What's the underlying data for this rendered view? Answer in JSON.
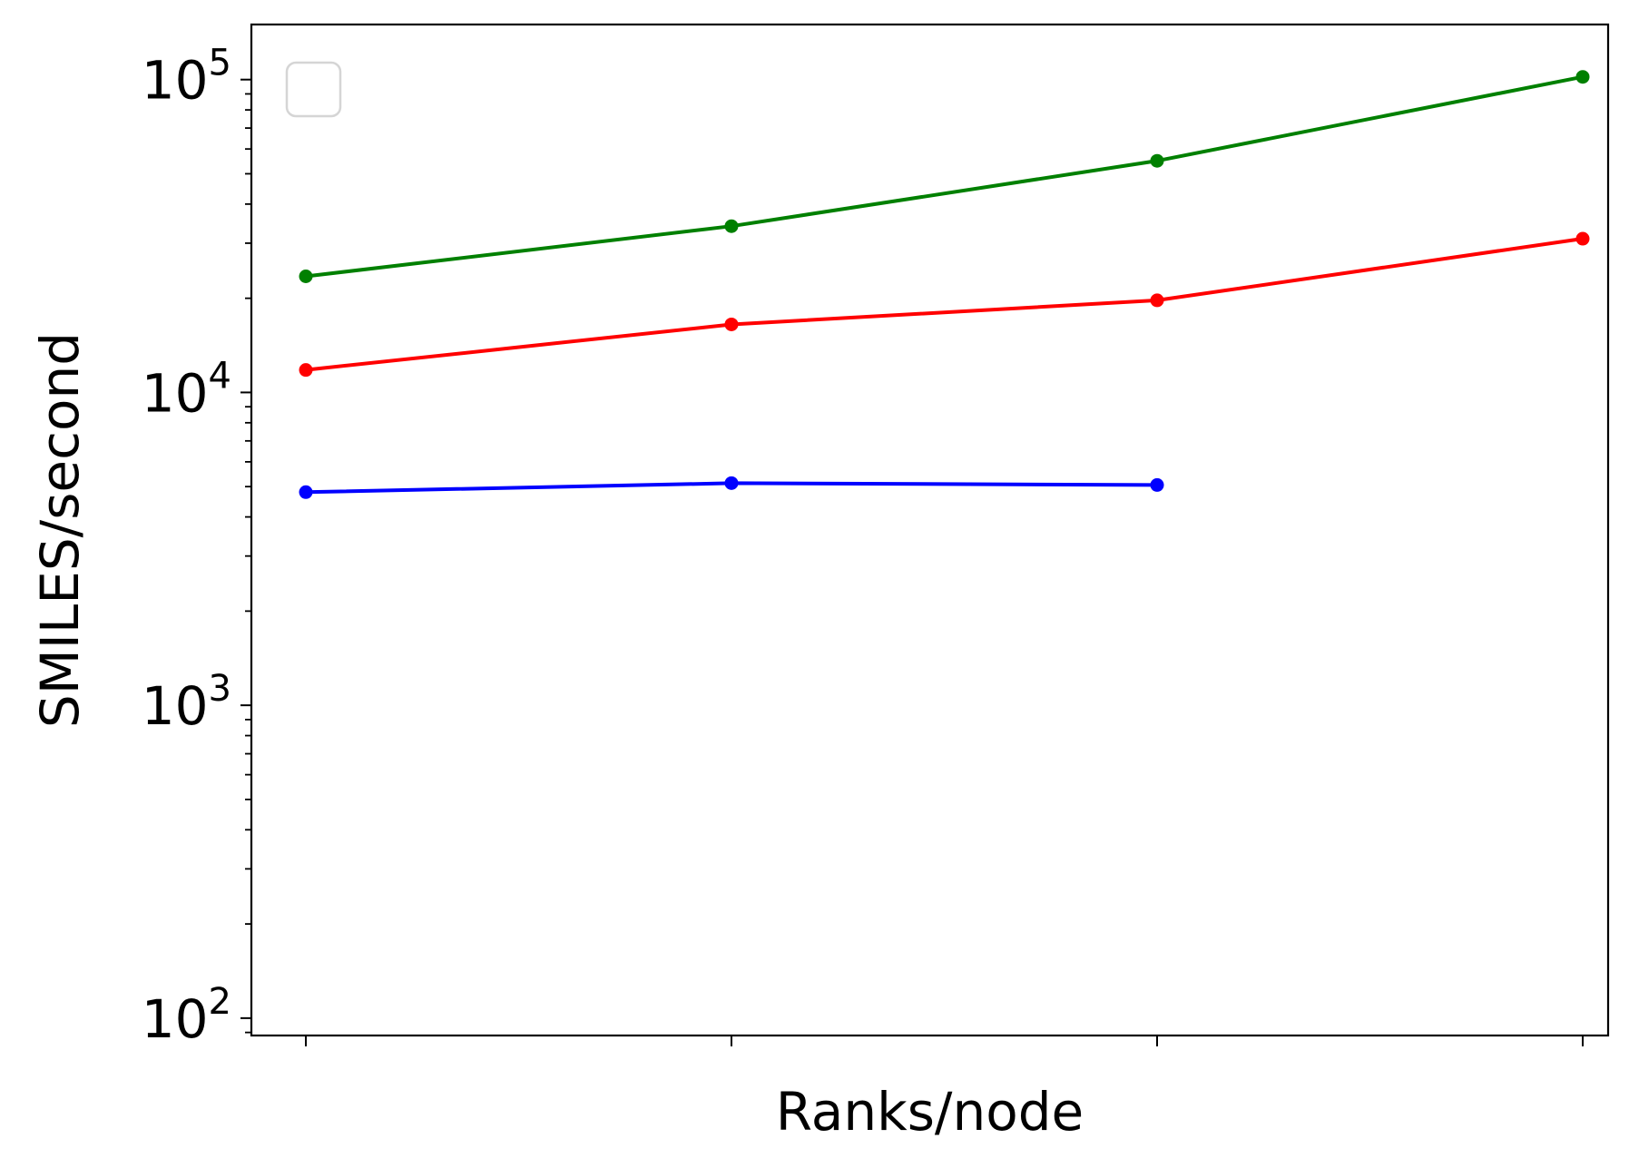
{
  "chart_data": {
    "type": "line",
    "title": "",
    "xlabel": "Ranks/node",
    "ylabel": "SMILES/second",
    "y_scale": "log",
    "ylim": [
      88,
      150000
    ],
    "x_tick_count": 4,
    "x_tick_labels": [
      "",
      "",
      "",
      ""
    ],
    "y_major_ticks": [
      {
        "value": 100,
        "base": "10",
        "exp": "2"
      },
      {
        "value": 1000,
        "base": "10",
        "exp": "3"
      },
      {
        "value": 10000,
        "base": "10",
        "exp": "4"
      },
      {
        "value": 100000,
        "base": "10",
        "exp": "5"
      }
    ],
    "grid": false,
    "legend": {
      "placement": "upper-left",
      "entries": []
    },
    "marker": "dot",
    "series": [
      {
        "color": "#008000",
        "values": [
          23500,
          34000,
          55000,
          102000
        ]
      },
      {
        "color": "#ff0000",
        "values": [
          11800,
          16500,
          19700,
          31000
        ]
      },
      {
        "color": "#0000ff",
        "values": [
          4800,
          5130,
          5060,
          null
        ]
      }
    ]
  }
}
